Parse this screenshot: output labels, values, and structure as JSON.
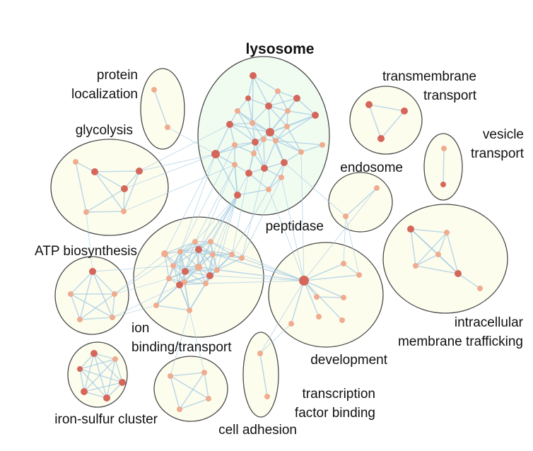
{
  "colors": {
    "cluster_fill": "#fdfdee",
    "highlight_fill": "#f1fcf1",
    "edge": "#a9cde3",
    "node_dark": "#d4675a",
    "node_light": "#efac8e"
  },
  "clusters": [
    {
      "id": "lysosome",
      "label": "lysosome",
      "highlight": true
    },
    {
      "id": "protein_localization",
      "label": "protein localization"
    },
    {
      "id": "transmembrane_transport",
      "label": "transmembrane transport"
    },
    {
      "id": "vesicle_transport",
      "label": "vesicle transport"
    },
    {
      "id": "glycolysis",
      "label": "glycolysis"
    },
    {
      "id": "endosome",
      "label": "endosome"
    },
    {
      "id": "peptidase",
      "label": "peptidase"
    },
    {
      "id": "atp_biosynthesis",
      "label": "ATP biosynthesis"
    },
    {
      "id": "intracellular_membrane_trafficking",
      "label": "intracellular membrane trafficking"
    },
    {
      "id": "ion_binding_transport",
      "label": "ion binding/transport"
    },
    {
      "id": "development",
      "label": "development"
    },
    {
      "id": "iron_sulfur_cluster",
      "label": "iron-sulfur cluster"
    },
    {
      "id": "cell_adhesion",
      "label": "cell adhesion"
    },
    {
      "id": "transcription_factor_binding",
      "label": "transcription factor binding"
    }
  ]
}
